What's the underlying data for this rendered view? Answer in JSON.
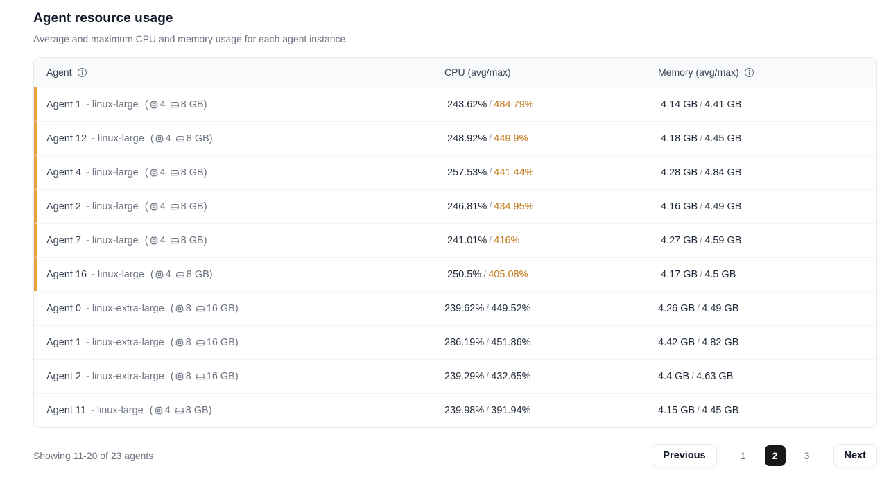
{
  "page": {
    "title": "Agent resource usage",
    "subtitle": "Average and maximum CPU and memory usage for each agent instance."
  },
  "table": {
    "columns": {
      "agent": "Agent",
      "cpu": "CPU (avg/max)",
      "memory": "Memory (avg/max)"
    },
    "rows": [
      {
        "name": "Agent 1",
        "type": "- linux-large",
        "paren_open": "(",
        "cores": "4",
        "ram": "8 GB)",
        "cpu_avg": "243.62%",
        "sep": "/",
        "cpu_max": "484.79%",
        "mem_avg": "4.14 GB",
        "mem_max": "4.41 GB",
        "highlighted": true
      },
      {
        "name": "Agent 12",
        "type": "- linux-large",
        "paren_open": "(",
        "cores": "4",
        "ram": "8 GB)",
        "cpu_avg": "248.92%",
        "sep": "/",
        "cpu_max": "449.9%",
        "mem_avg": "4.18 GB",
        "mem_max": "4.45 GB",
        "highlighted": true
      },
      {
        "name": "Agent 4",
        "type": "- linux-large",
        "paren_open": "(",
        "cores": "4",
        "ram": "8 GB)",
        "cpu_avg": "257.53%",
        "sep": "/",
        "cpu_max": "441.44%",
        "mem_avg": "4.28 GB",
        "mem_max": "4.84 GB",
        "highlighted": true
      },
      {
        "name": "Agent 2",
        "type": "- linux-large",
        "paren_open": "(",
        "cores": "4",
        "ram": "8 GB)",
        "cpu_avg": "246.81%",
        "sep": "/",
        "cpu_max": "434.95%",
        "mem_avg": "4.16 GB",
        "mem_max": "4.49 GB",
        "highlighted": true
      },
      {
        "name": "Agent 7",
        "type": "- linux-large",
        "paren_open": "(",
        "cores": "4",
        "ram": "8 GB)",
        "cpu_avg": "241.01%",
        "sep": "/",
        "cpu_max": "416%",
        "mem_avg": "4.27 GB",
        "mem_max": "4.59 GB",
        "highlighted": true
      },
      {
        "name": "Agent 16",
        "type": "- linux-large",
        "paren_open": "(",
        "cores": "4",
        "ram": "8 GB)",
        "cpu_avg": "250.5%",
        "sep": "/",
        "cpu_max": "405.08%",
        "mem_avg": "4.17 GB",
        "mem_max": "4.5 GB",
        "highlighted": true
      },
      {
        "name": "Agent 0",
        "type": "- linux-extra-large",
        "paren_open": "(",
        "cores": "8",
        "ram": "16 GB)",
        "cpu_avg": "239.62%",
        "sep": "/",
        "cpu_max": "449.52%",
        "mem_avg": "4.26 GB",
        "mem_max": "4.49 GB",
        "highlighted": false
      },
      {
        "name": "Agent 1",
        "type": "- linux-extra-large",
        "paren_open": "(",
        "cores": "8",
        "ram": "16 GB)",
        "cpu_avg": "286.19%",
        "sep": "/",
        "cpu_max": "451.86%",
        "mem_avg": "4.42 GB",
        "mem_max": "4.82 GB",
        "highlighted": false
      },
      {
        "name": "Agent 2",
        "type": "- linux-extra-large",
        "paren_open": "(",
        "cores": "8",
        "ram": "16 GB)",
        "cpu_avg": "239.29%",
        "sep": "/",
        "cpu_max": "432.65%",
        "mem_avg": "4.4 GB",
        "mem_max": "4.63 GB",
        "highlighted": false
      },
      {
        "name": "Agent 11",
        "type": "- linux-large",
        "paren_open": "(",
        "cores": "4",
        "ram": "8 GB)",
        "cpu_avg": "239.98%",
        "sep": "/",
        "cpu_max": "391.94%",
        "mem_avg": "4.15 GB",
        "mem_max": "4.45 GB",
        "highlighted": false
      }
    ]
  },
  "footer": {
    "summary": "Showing 11-20 of 23 agents",
    "previous_label": "Previous",
    "pages": {
      "p1": "1",
      "p2": "2",
      "p3": "3"
    },
    "current_page": "2",
    "next_label": "Next"
  },
  "colors": {
    "highlight_stripe": "#e8a33d",
    "cpu_max_highlight": "#c17817",
    "current_page_bg": "#18181b",
    "header_bg": "#f9fafb",
    "border": "#e5e7eb"
  },
  "icons": {
    "agent_info": "info-icon",
    "memory_info": "info-icon",
    "cores": "cpu-chip-icon",
    "ram": "memory-stick-icon"
  }
}
